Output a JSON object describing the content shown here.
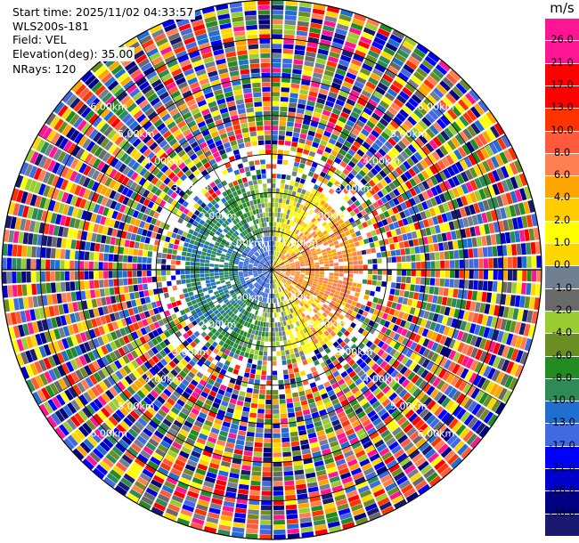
{
  "header": {
    "start_time": "Start time: 2025/11/02 04:33:57",
    "instrument": "WLS200s-181",
    "field": "Field: VEL",
    "elevation": "Elevation(deg): 35.00",
    "nrays": "NRays: 120"
  },
  "colorbar": {
    "unit": "m/s",
    "ticks": [
      "26.0",
      "21.0",
      "17.0",
      "13.0",
      "10.0",
      "8.0",
      "6.0",
      "4.0",
      "2.0",
      "1.0",
      "0.0",
      "-1.0",
      "-2.0",
      "-4.0",
      "-6.0",
      "-8.0",
      "-10.0",
      "-13.0",
      "-17.0",
      "-21.0",
      "-26.0",
      "-30.0"
    ],
    "colors": [
      "#ff1493",
      "#ff1493",
      "#ff0000",
      "#ff0000",
      "#ff3300",
      "#ff5a3c",
      "#ff7f50",
      "#ffa500",
      "#ffcc00",
      "#ffff00",
      "#ffd700",
      "#708090",
      "#696969",
      "#9acd32",
      "#6b8e23",
      "#228b22",
      "#2e8b57",
      "#1e6fd0",
      "#4169e1",
      "#0000ff",
      "#0000cd",
      "#000080",
      "#191970"
    ]
  },
  "chart_data": {
    "type": "ppi",
    "field": "VEL",
    "nrays": 120,
    "elevation_deg": 35.0,
    "range_rings_km": [
      "1.00km",
      "2.00km",
      "3.00km",
      "4.00km",
      "5.00km",
      "6.00km",
      "7.00km"
    ],
    "ring_km": [
      1,
      2,
      3,
      4,
      5,
      6,
      7
    ],
    "max_range_km": 7,
    "unit": "m/s"
  }
}
